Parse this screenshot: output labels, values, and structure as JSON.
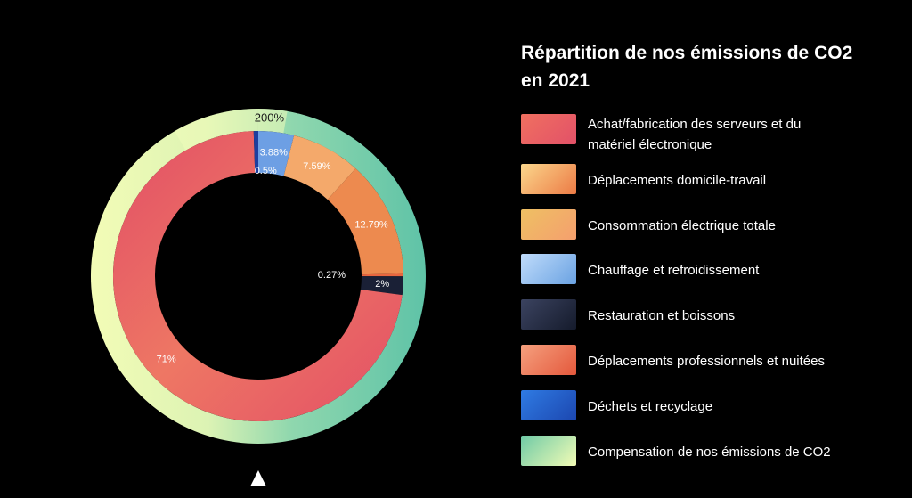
{
  "chart_data": {
    "type": "pie",
    "title": "Répartition de nos émissions de CO2",
    "title_line2": "en 2021",
    "inner_ring": {
      "slices": [
        {
          "category": "Chauffage et refroidissement",
          "value": 3.88,
          "label": "3.88%"
        },
        {
          "category": "Consommation électrique totale",
          "value": 7.59,
          "label": "7.59%"
        },
        {
          "category": "Déplacements domicile-travail",
          "value": 12.79,
          "label": "12.79%"
        },
        {
          "category": "Déplacements professionnels et nuitées",
          "value": 0.27,
          "label": "0.27%"
        },
        {
          "category": "Restauration et boissons",
          "value": 2,
          "label": "2%"
        },
        {
          "category": "Achat/fabrication des serveurs et du matériel électronique",
          "value": 71,
          "label": "71%"
        },
        {
          "category": "Déchets et recyclage",
          "value": 0.5,
          "label": "0.5%"
        }
      ]
    },
    "outer_ring": {
      "slices": [
        {
          "category": "Compensation de nos émissions de CO2",
          "value": 200,
          "label": "200%"
        }
      ]
    },
    "legend_placement": "right",
    "legend": [
      {
        "label_line1": "Achat/fabrication des serveurs et du",
        "label_line2": "matériel électronique",
        "color_from": "#f07060",
        "color_to": "#e25168"
      },
      {
        "label_line1": "Déplacements domicile-travail",
        "label_line2": "",
        "color_from": "#fbd78c",
        "color_to": "#ec7a45"
      },
      {
        "label_line1": "Consommation électrique totale",
        "label_line2": "",
        "color_from": "#eec063",
        "color_to": "#f59f6e"
      },
      {
        "label_line1": "Chauffage et refroidissement",
        "label_line2": "",
        "color_from": "#c0dcfb",
        "color_to": "#6aa2e2"
      },
      {
        "label_line1": "Restauration et boissons",
        "label_line2": "",
        "color_from": "#3b4360",
        "color_to": "#151b2c"
      },
      {
        "label_line1": "Déplacements professionnels et nuitées",
        "label_line2": "",
        "color_from": "#f5a07e",
        "color_to": "#e4583c"
      },
      {
        "label_line1": "Déchets et recyclage",
        "label_line2": "",
        "color_from": "#2f7be3",
        "color_to": "#1c47b0"
      },
      {
        "label_line1": "Compensation de nos émissions de CO2",
        "label_line2": "",
        "color_from": "#6fcaa6",
        "color_to": "#f3fcb6"
      }
    ]
  },
  "colors": {
    "achat": "#e4566a",
    "domicile": "#ed8a4f",
    "electricite": "#f4a96b",
    "chauffage": "#6d9fe4",
    "restauration": "#1a2036",
    "pro": "#e8663f",
    "dechets": "#1d3f9e",
    "compensation": "#66c7a8",
    "compensation_light": "#f1fbba"
  },
  "nav_icon": "up-triangle-icon"
}
